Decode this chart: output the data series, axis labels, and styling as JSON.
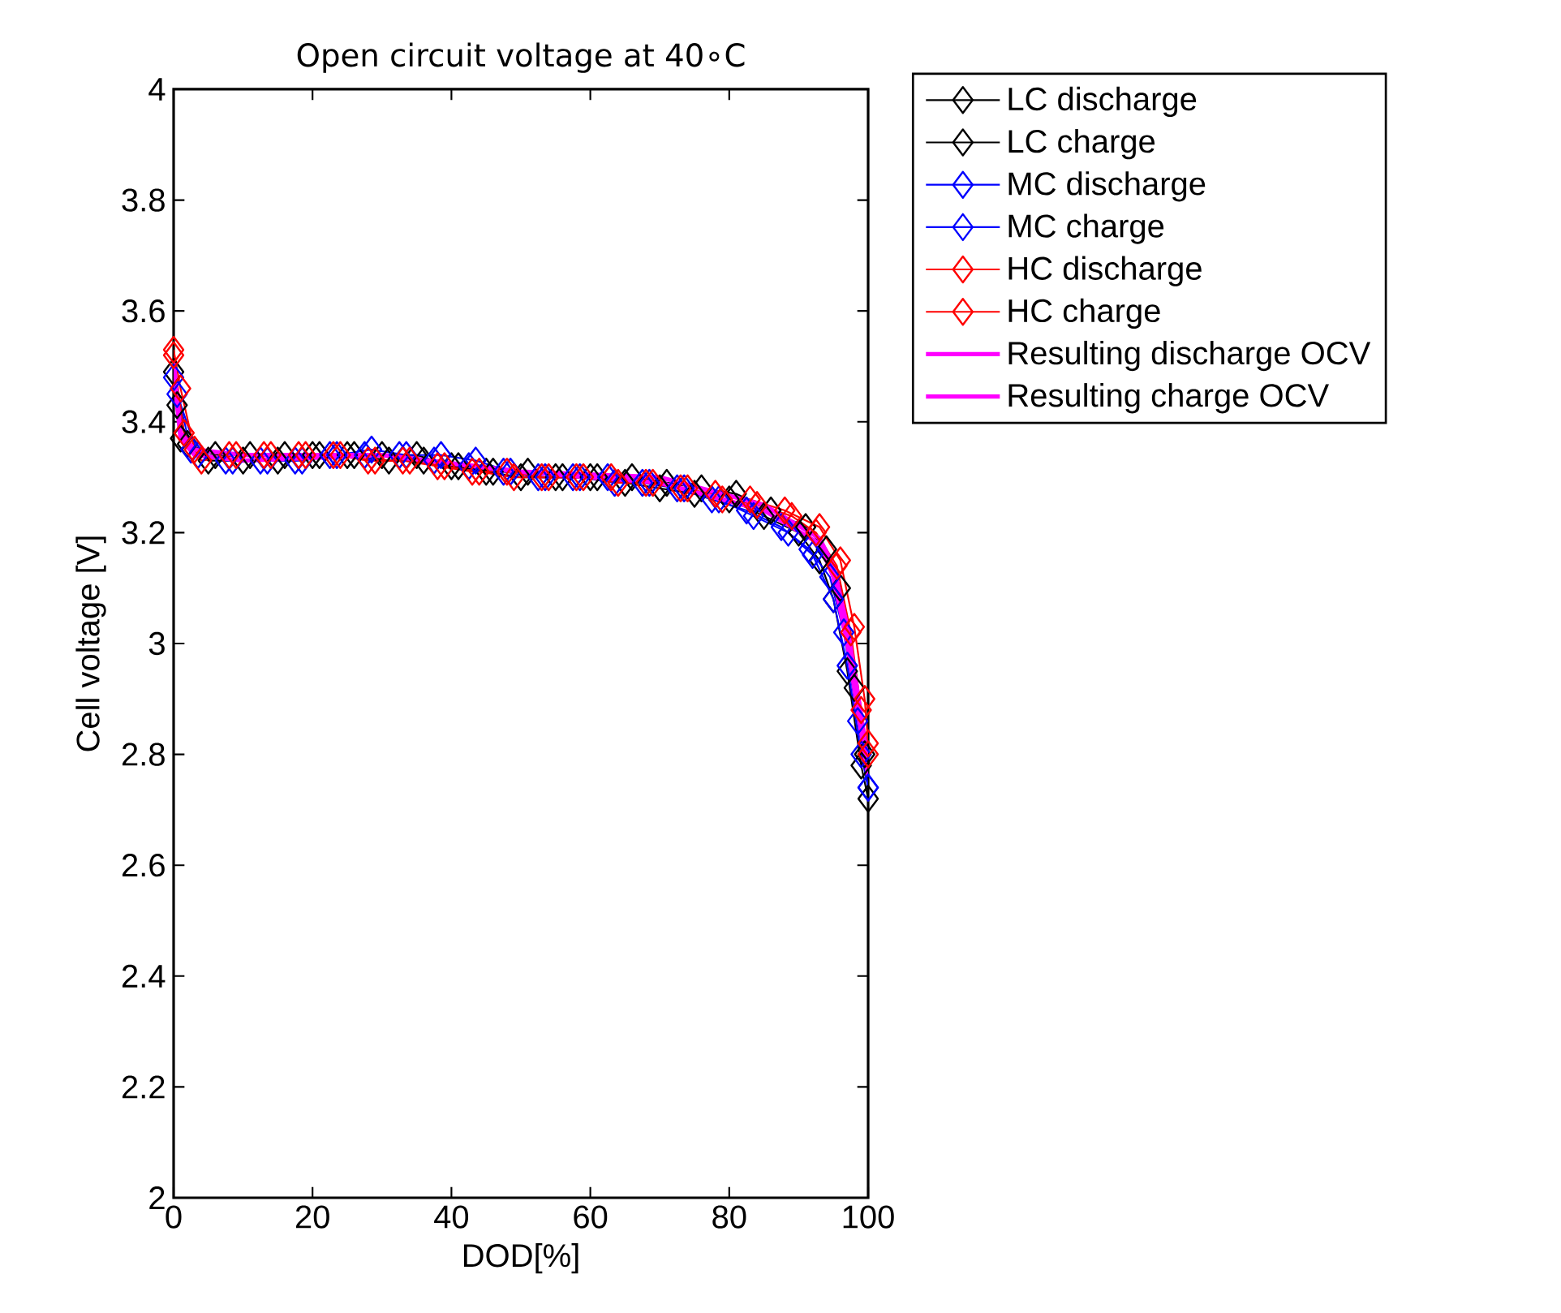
{
  "chart_data": {
    "type": "line",
    "title": "Open circuit voltage at 40∘C",
    "xlabel": "DOD[%]",
    "ylabel": "Cell voltage [V]",
    "xlim": [
      0,
      100
    ],
    "xticks": [
      0,
      20,
      40,
      60,
      80,
      100
    ],
    "ylim": [
      2,
      4
    ],
    "yticks": [
      2,
      2.2,
      2.4,
      2.6,
      2.8,
      3,
      3.2,
      3.4,
      3.6,
      3.8,
      4
    ],
    "grid": false,
    "legend": "right",
    "series": [
      {
        "name": "LC discharge",
        "color": "#000000",
        "marker": "diamond",
        "line_style": "solid",
        "x": [
          0,
          1,
          5,
          10,
          15,
          20,
          25,
          30,
          35,
          40,
          45,
          50,
          55,
          60,
          65,
          70,
          75,
          80,
          85,
          90,
          93,
          95,
          97,
          99,
          100
        ],
        "values": [
          3.49,
          3.37,
          3.33,
          3.33,
          3.33,
          3.34,
          3.34,
          3.34,
          3.34,
          3.32,
          3.31,
          3.3,
          3.3,
          3.3,
          3.29,
          3.28,
          3.27,
          3.26,
          3.23,
          3.2,
          3.15,
          3.08,
          2.95,
          2.78,
          2.72
        ]
      },
      {
        "name": "LC charge",
        "color": "#000000",
        "marker": "diamond",
        "line_style": "solid",
        "x": [
          0.5,
          2,
          6,
          11,
          16,
          21,
          26,
          31,
          36,
          41,
          46,
          51,
          56,
          61,
          66,
          71,
          76,
          81,
          86,
          91,
          94,
          96,
          98,
          99.5
        ],
        "values": [
          3.43,
          3.36,
          3.34,
          3.34,
          3.34,
          3.34,
          3.34,
          3.33,
          3.33,
          3.32,
          3.31,
          3.31,
          3.3,
          3.3,
          3.3,
          3.29,
          3.28,
          3.27,
          3.24,
          3.21,
          3.17,
          3.1,
          2.92,
          2.8
        ]
      },
      {
        "name": "MC discharge",
        "color": "#0000ff",
        "marker": "diamond",
        "line_style": "solid",
        "x": [
          0,
          2.5,
          7.5,
          12.5,
          17.5,
          22.5,
          27.5,
          32.5,
          37.5,
          42.5,
          47.5,
          52.5,
          57.5,
          62.5,
          67.5,
          72.5,
          77.5,
          82.5,
          87.5,
          91.5,
          94.5,
          96.5,
          98.5,
          100
        ],
        "values": [
          3.48,
          3.35,
          3.33,
          3.33,
          3.33,
          3.34,
          3.34,
          3.34,
          3.33,
          3.32,
          3.31,
          3.3,
          3.3,
          3.3,
          3.29,
          3.28,
          3.26,
          3.24,
          3.21,
          3.17,
          3.12,
          3.02,
          2.86,
          2.74
        ]
      },
      {
        "name": "MC charge",
        "color": "#0000ff",
        "marker": "diamond",
        "line_style": "solid",
        "x": [
          0.5,
          3.5,
          8.5,
          13.5,
          18.5,
          23.5,
          28.5,
          33.5,
          38.5,
          43.5,
          48.5,
          53.5,
          58.5,
          63.5,
          68.5,
          73.5,
          78.5,
          83.5,
          88.5,
          92,
          95,
          97,
          99,
          100
        ],
        "values": [
          3.45,
          3.34,
          3.33,
          3.33,
          3.33,
          3.34,
          3.35,
          3.34,
          3.34,
          3.33,
          3.31,
          3.3,
          3.3,
          3.29,
          3.29,
          3.28,
          3.26,
          3.23,
          3.2,
          3.16,
          3.08,
          2.96,
          2.8,
          2.74
        ]
      },
      {
        "name": "HC discharge",
        "color": "#ff0000",
        "marker": "diamond",
        "line_style": "solid",
        "x": [
          0,
          1.5,
          4,
          9,
          14,
          19,
          24,
          29,
          34,
          39,
          44,
          49,
          54,
          59,
          64,
          69,
          74,
          79,
          84,
          89,
          92.5,
          95.5,
          97.5,
          99,
          100
        ],
        "values": [
          3.52,
          3.38,
          3.33,
          3.34,
          3.34,
          3.34,
          3.34,
          3.33,
          3.33,
          3.32,
          3.31,
          3.3,
          3.3,
          3.3,
          3.29,
          3.29,
          3.28,
          3.26,
          3.25,
          3.23,
          3.2,
          3.14,
          3.02,
          2.88,
          2.8
        ]
      },
      {
        "name": "HC charge",
        "color": "#ff0000",
        "marker": "diamond",
        "line_style": "solid",
        "x": [
          0,
          1,
          3,
          8,
          13,
          18,
          23,
          28,
          33,
          38,
          43,
          48,
          53,
          58,
          63,
          68,
          73,
          78,
          83,
          88,
          93,
          96,
          98,
          99.5,
          100
        ],
        "values": [
          3.53,
          3.46,
          3.35,
          3.34,
          3.34,
          3.34,
          3.34,
          3.33,
          3.33,
          3.32,
          3.31,
          3.31,
          3.3,
          3.3,
          3.3,
          3.29,
          3.28,
          3.27,
          3.26,
          3.24,
          3.21,
          3.15,
          3.03,
          2.9,
          2.82
        ]
      },
      {
        "name": "Resulting discharge OCV",
        "color": "#ff00ff",
        "marker": "none",
        "line_style": "solid",
        "x": [
          0,
          1,
          3,
          10,
          30,
          50,
          70,
          85,
          93,
          95,
          97,
          99,
          100
        ],
        "values": [
          3.49,
          3.37,
          3.34,
          3.33,
          3.34,
          3.31,
          3.29,
          3.24,
          3.18,
          3.12,
          3.0,
          2.84,
          2.76
        ]
      },
      {
        "name": "Resulting charge OCV",
        "color": "#ff00ff",
        "marker": "none",
        "line_style": "solid",
        "x": [
          0,
          1,
          3,
          10,
          30,
          50,
          70,
          85,
          93,
          95,
          97,
          99,
          100
        ],
        "values": [
          3.51,
          3.38,
          3.35,
          3.34,
          3.34,
          3.31,
          3.3,
          3.25,
          3.19,
          3.14,
          3.03,
          2.87,
          2.78
        ]
      }
    ]
  }
}
